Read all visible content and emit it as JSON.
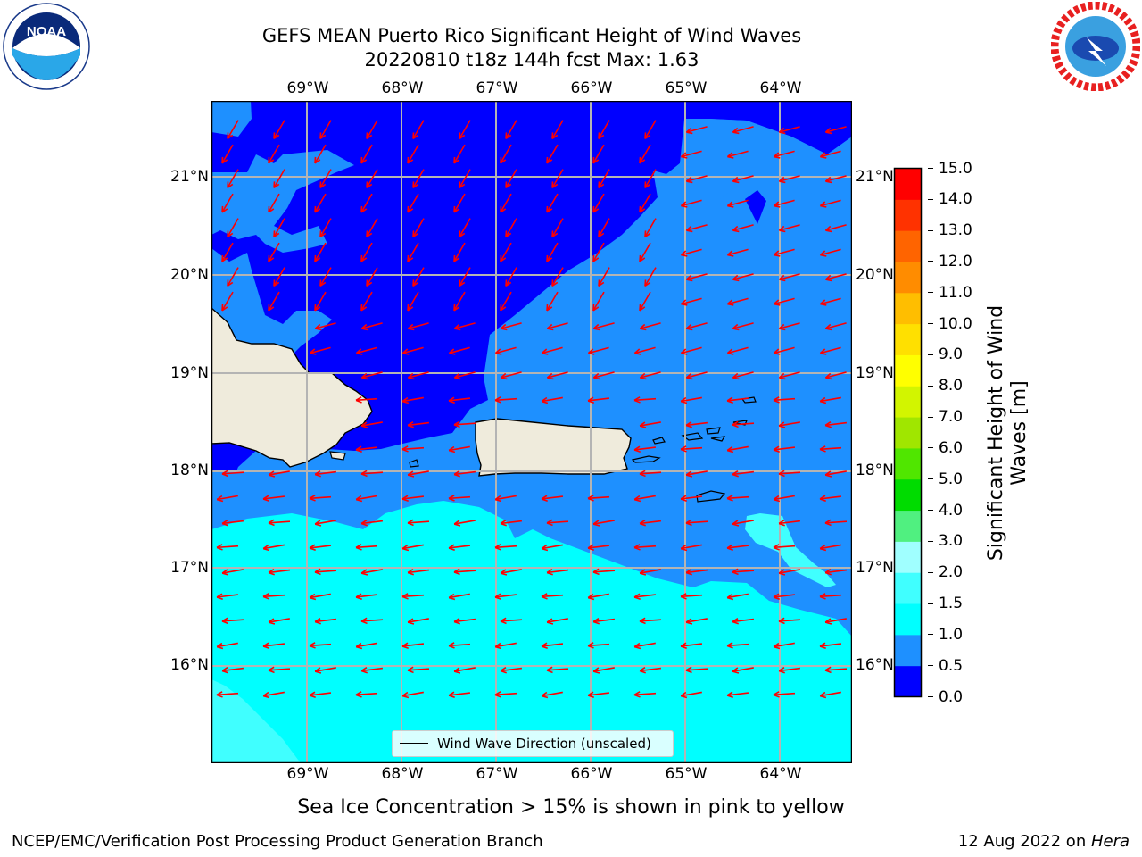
{
  "header": {
    "title_line1": "GEFS MEAN Puerto Rico Significant Height of Wind Waves",
    "title_line2": "20220810 t18z 144h fcst   Max: 1.63"
  },
  "logos": {
    "noaa_text": "NOAA",
    "noaa_ring": "NATIONAL OCEANIC AND ATMOSPHERIC ADMINISTRATION · U.S. DEPARTMENT OF COMMERCE",
    "nws_ring": "NATIONAL WEATHER SERVICE"
  },
  "map": {
    "lon_ticks": [
      "69°W",
      "68°W",
      "67°W",
      "66°W",
      "65°W",
      "64°W"
    ],
    "lat_ticks": [
      "21°N",
      "20°N",
      "19°N",
      "18°N",
      "17°N",
      "16°N"
    ],
    "legend_label": "Wind Wave Direction (unscaled)",
    "land_color": "#efebdc",
    "arrow_color": "#ff0000"
  },
  "colorbar": {
    "label_line1": "Significant Height of Wind",
    "label_line2": "Waves [m]",
    "levels": [
      "0.0",
      "0.5",
      "1.0",
      "1.5",
      "2.0",
      "3.0",
      "4.0",
      "5.0",
      "6.0",
      "7.0",
      "8.0",
      "9.0",
      "10.0",
      "11.0",
      "12.0",
      "13.0",
      "14.0",
      "15.0"
    ],
    "colors": [
      "#0000ff",
      "#1e90ff",
      "#00ffff",
      "#40ffff",
      "#a0ffff",
      "#50f080",
      "#00dc00",
      "#50e600",
      "#a0e600",
      "#d2f500",
      "#ffff00",
      "#ffe000",
      "#ffbe00",
      "#ff8c00",
      "#ff6400",
      "#ff3200",
      "#ff0000"
    ]
  },
  "notes": {
    "sea_ice": "Sea Ice Concentration > 15% is shown in pink to yellow"
  },
  "footer": {
    "left": "NCEP/EMC/Verification Post Processing Product Generation Branch",
    "right_prefix": "12 Aug 2022 on ",
    "right_host": "Hera"
  },
  "chart_data": {
    "type": "heatmap",
    "title": "GEFS MEAN Puerto Rico Significant Height of Wind Waves",
    "subtitle": "20220810 t18z 144h fcst   Max: 1.63",
    "xlabel": "",
    "ylabel": "",
    "xlim": [
      -70,
      -63.25
    ],
    "ylim": [
      15,
      21.75
    ],
    "colorbar_label": "Significant Height of Wind Waves [m]",
    "colorbar_range": [
      0,
      15
    ],
    "max_value": 1.63,
    "regions": [
      {
        "label": "0.0-0.5",
        "area": "north of ~19.3N west of 66W; open water west of 65.5W north of Puerto Rico"
      },
      {
        "label": "0.5-1.0",
        "area": "around Puerto Rico, Virgin Islands and east of 65W"
      },
      {
        "label": "1.0-1.5",
        "area": "Caribbean south of ~17.5N"
      },
      {
        "label": "1.5-2.0",
        "area": "small patches near 64.3W 17.3N and far south-west corner"
      }
    ],
    "wind_wave_direction": "mostly north-east to south-west in the north, east to west south of 19N",
    "grid": true,
    "legend_position": "bottom-center"
  }
}
